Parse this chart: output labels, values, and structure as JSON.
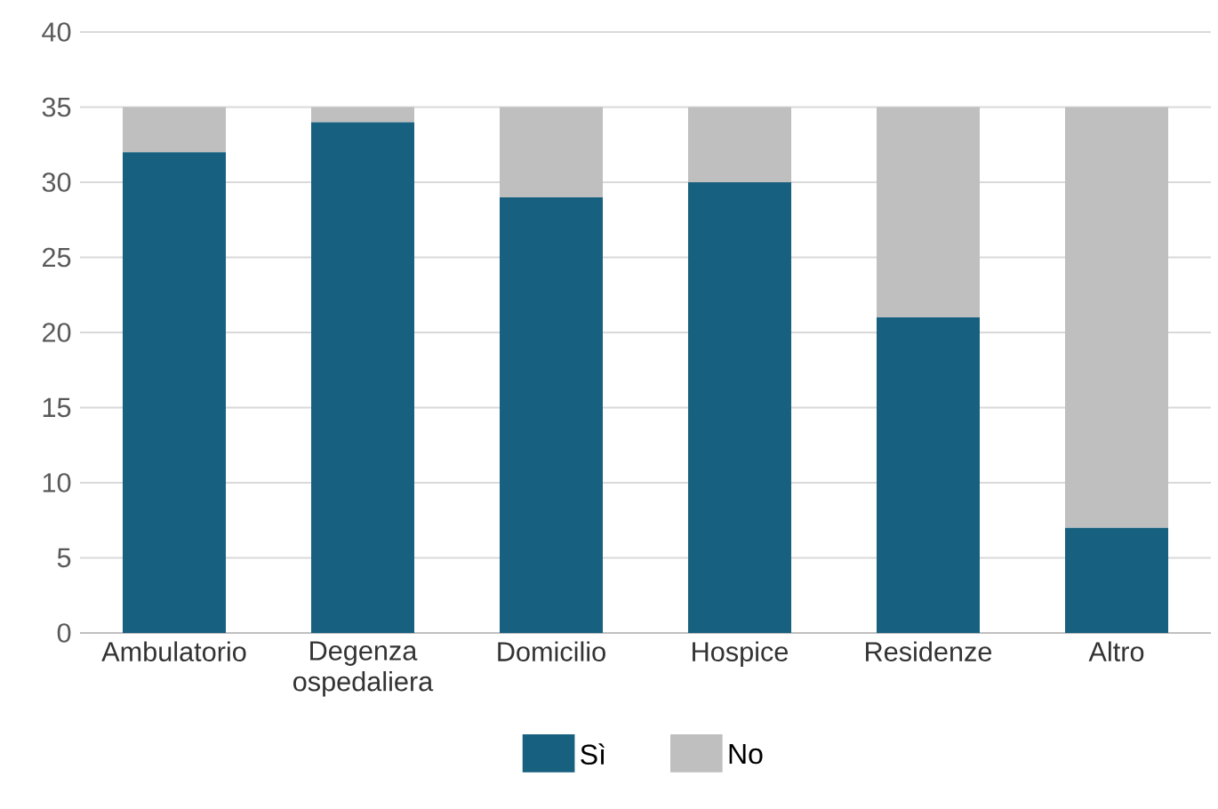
{
  "chart_data": {
    "type": "bar",
    "stacked": true,
    "categories": [
      "Ambulatorio",
      "Degenza ospedaliera",
      "Domicilio",
      "Hospice",
      "Residenze",
      "Altro"
    ],
    "series": [
      {
        "name": "Sì",
        "color": "#17607f",
        "values": [
          32,
          34,
          29,
          30,
          21,
          7
        ]
      },
      {
        "name": "No",
        "color": "#bfbfbf",
        "values": [
          3,
          1,
          6,
          5,
          14,
          28
        ]
      }
    ],
    "ylim": [
      0,
      40
    ],
    "yticks": [
      0,
      5,
      10,
      15,
      20,
      25,
      30,
      35,
      40
    ],
    "grid": "y",
    "legend": "bottom"
  }
}
